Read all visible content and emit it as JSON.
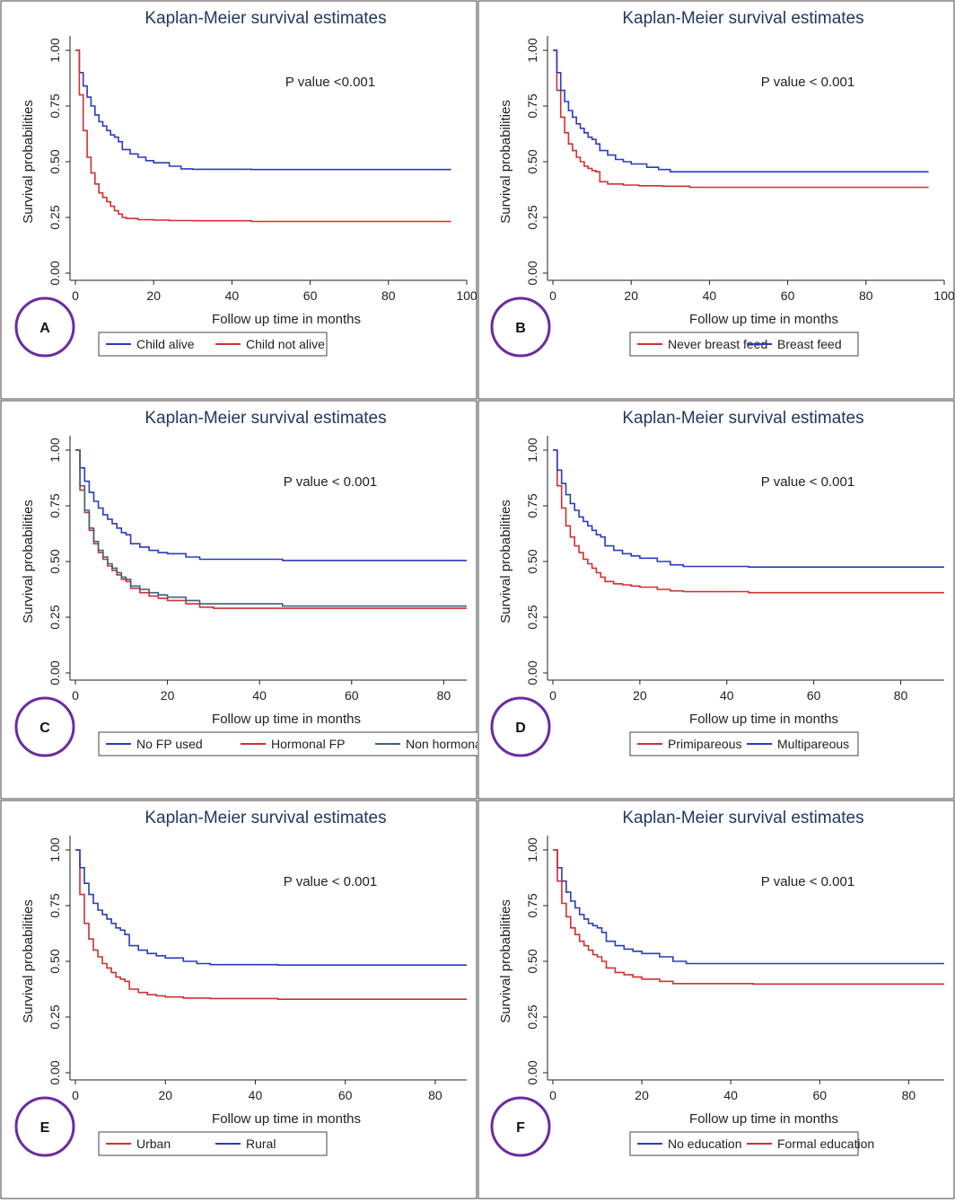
{
  "chart_data": [
    {
      "type": "line",
      "panel_label": "A",
      "title": "Kaplan-Meier survival estimates",
      "xlabel": "Follow up time in months",
      "ylabel": "Survival probabilities",
      "annotation": "P value <0.001",
      "xlim": [
        0,
        100
      ],
      "ylim": [
        0,
        1
      ],
      "xticks": [
        "0",
        "20",
        "40",
        "60",
        "80",
        "100"
      ],
      "yticks": [
        "0.00",
        "0.25",
        "0.50",
        "0.75",
        "1.00"
      ],
      "legend": [
        "Child alive",
        "Child not alive"
      ],
      "series": [
        {
          "name": "Child alive",
          "color": "#2a3bbf",
          "x": [
            0,
            1,
            2,
            3,
            4,
            5,
            6,
            7,
            8,
            9,
            10,
            11,
            12,
            14,
            16,
            18,
            20,
            24,
            27,
            30,
            45,
            96
          ],
          "y": [
            1.0,
            0.9,
            0.84,
            0.79,
            0.75,
            0.71,
            0.68,
            0.66,
            0.64,
            0.62,
            0.61,
            0.59,
            0.555,
            0.535,
            0.52,
            0.505,
            0.495,
            0.48,
            0.468,
            0.466,
            0.465,
            0.465
          ]
        },
        {
          "name": "Child not alive",
          "color": "#d03030",
          "x": [
            0,
            1,
            2,
            3,
            4,
            5,
            6,
            7,
            8,
            9,
            10,
            11,
            12,
            13,
            16,
            20,
            24,
            30,
            45,
            96
          ],
          "y": [
            1.0,
            0.8,
            0.64,
            0.52,
            0.45,
            0.4,
            0.36,
            0.34,
            0.32,
            0.3,
            0.28,
            0.265,
            0.25,
            0.245,
            0.24,
            0.238,
            0.236,
            0.235,
            0.232,
            0.232
          ]
        }
      ]
    },
    {
      "type": "line",
      "panel_label": "B",
      "title": "Kaplan-Meier survival estimates",
      "xlabel": "Follow up time in months",
      "ylabel": "Survival probabilities",
      "annotation": "P value < 0.001",
      "xlim": [
        0,
        100
      ],
      "ylim": [
        0,
        1
      ],
      "xticks": [
        "0",
        "20",
        "40",
        "60",
        "80",
        "100"
      ],
      "yticks": [
        "0.00",
        "0.25",
        "0.50",
        "0.75",
        "1.00"
      ],
      "legend": [
        "Never breast feed",
        "Breast feed"
      ],
      "series": [
        {
          "name": "Never breast feed",
          "color": "#d03030",
          "x": [
            0,
            1,
            2,
            3,
            4,
            5,
            6,
            7,
            8,
            9,
            10,
            11,
            12,
            14,
            18,
            22,
            28,
            35,
            45,
            96
          ],
          "y": [
            1.0,
            0.82,
            0.7,
            0.63,
            0.58,
            0.55,
            0.52,
            0.5,
            0.48,
            0.47,
            0.46,
            0.455,
            0.41,
            0.4,
            0.395,
            0.392,
            0.39,
            0.385,
            0.385,
            0.385
          ]
        },
        {
          "name": "Breast feed",
          "color": "#2a3bbf",
          "x": [
            0,
            1,
            2,
            3,
            4,
            5,
            6,
            7,
            8,
            9,
            10,
            11,
            12,
            14,
            16,
            18,
            20,
            24,
            27,
            30,
            40,
            96
          ],
          "y": [
            1.0,
            0.9,
            0.82,
            0.77,
            0.73,
            0.7,
            0.67,
            0.65,
            0.63,
            0.61,
            0.6,
            0.58,
            0.55,
            0.53,
            0.51,
            0.5,
            0.49,
            0.475,
            0.465,
            0.455,
            0.455,
            0.455
          ]
        }
      ]
    },
    {
      "type": "line",
      "panel_label": "C",
      "title": "Kaplan-Meier survival estimates",
      "xlabel": "Follow up  time in months",
      "ylabel": "Survival probabilities",
      "annotation": "P value < 0.001",
      "xlim": [
        0,
        85
      ],
      "ylim": [
        0,
        1
      ],
      "xticks": [
        "0",
        "20",
        "40",
        "60",
        "80"
      ],
      "yticks": [
        "0.00",
        "0.25",
        "0.50",
        "0.75",
        "1.00"
      ],
      "legend": [
        "No FP used",
        "Hormonal FP",
        "Non hormonal"
      ],
      "series": [
        {
          "name": "No FP used",
          "color": "#2a3bbf",
          "x": [
            0,
            1,
            2,
            3,
            4,
            5,
            6,
            7,
            8,
            9,
            10,
            11,
            12,
            14,
            16,
            18,
            20,
            24,
            27,
            30,
            45,
            96
          ],
          "y": [
            1.0,
            0.92,
            0.86,
            0.81,
            0.77,
            0.74,
            0.71,
            0.69,
            0.67,
            0.65,
            0.63,
            0.62,
            0.58,
            0.565,
            0.55,
            0.54,
            0.535,
            0.52,
            0.51,
            0.51,
            0.505,
            0.505
          ]
        },
        {
          "name": "Hormonal FP",
          "color": "#d03030",
          "x": [
            0,
            1,
            2,
            3,
            4,
            5,
            6,
            7,
            8,
            9,
            10,
            11,
            12,
            14,
            16,
            18,
            20,
            24,
            27,
            30,
            45,
            96
          ],
          "y": [
            1.0,
            0.82,
            0.72,
            0.64,
            0.58,
            0.54,
            0.51,
            0.48,
            0.46,
            0.44,
            0.42,
            0.41,
            0.38,
            0.36,
            0.345,
            0.335,
            0.325,
            0.31,
            0.295,
            0.29,
            0.29,
            0.29
          ]
        },
        {
          "name": "Non hormonal",
          "color": "#3f5f7f",
          "x": [
            0,
            1,
            2,
            3,
            4,
            5,
            6,
            7,
            8,
            9,
            10,
            11,
            12,
            14,
            16,
            18,
            20,
            24,
            27,
            30,
            44,
            45,
            96
          ],
          "y": [
            1.0,
            0.84,
            0.73,
            0.65,
            0.59,
            0.55,
            0.52,
            0.49,
            0.47,
            0.45,
            0.43,
            0.42,
            0.39,
            0.375,
            0.36,
            0.35,
            0.34,
            0.325,
            0.31,
            0.31,
            0.31,
            0.3,
            0.3
          ]
        }
      ]
    },
    {
      "type": "line",
      "panel_label": "D",
      "title": "Kaplan-Meier survival estimates",
      "xlabel": "Follow up time in months",
      "ylabel": "Survival probabilities",
      "annotation": "P value < 0.001",
      "xlim": [
        0,
        90
      ],
      "ylim": [
        0,
        1
      ],
      "xticks": [
        "0",
        "20",
        "40",
        "60",
        "80"
      ],
      "yticks": [
        "0.00",
        "0.25",
        "0.50",
        "0.75",
        "1.00"
      ],
      "legend": [
        "Primipareous",
        "Multipareous"
      ],
      "series": [
        {
          "name": "Primipareous",
          "color": "#d03030",
          "x": [
            0,
            1,
            2,
            3,
            4,
            5,
            6,
            7,
            8,
            9,
            10,
            11,
            12,
            14,
            16,
            18,
            20,
            24,
            27,
            30,
            45,
            96
          ],
          "y": [
            1.0,
            0.84,
            0.74,
            0.66,
            0.61,
            0.57,
            0.54,
            0.51,
            0.49,
            0.47,
            0.45,
            0.43,
            0.41,
            0.4,
            0.395,
            0.39,
            0.385,
            0.375,
            0.368,
            0.365,
            0.36,
            0.36
          ]
        },
        {
          "name": "Multipareous",
          "color": "#2a3bbf",
          "x": [
            0,
            1,
            2,
            3,
            4,
            5,
            6,
            7,
            8,
            9,
            10,
            11,
            12,
            14,
            16,
            18,
            20,
            24,
            27,
            30,
            45,
            96
          ],
          "y": [
            1.0,
            0.91,
            0.85,
            0.8,
            0.76,
            0.73,
            0.7,
            0.68,
            0.66,
            0.64,
            0.62,
            0.61,
            0.57,
            0.55,
            0.535,
            0.525,
            0.515,
            0.5,
            0.485,
            0.478,
            0.475,
            0.475
          ]
        }
      ]
    },
    {
      "type": "line",
      "panel_label": "E",
      "title": "Kaplan-Meier survival estimates",
      "xlabel": "Follow up  time in months",
      "ylabel": "Survival probabilities",
      "annotation": "P value < 0.001",
      "xlim": [
        0,
        87
      ],
      "ylim": [
        0,
        1
      ],
      "xticks": [
        "0",
        "20",
        "40",
        "60",
        "80"
      ],
      "yticks": [
        "0.00",
        "0.25",
        "0.50",
        "0.75",
        "1.00"
      ],
      "legend": [
        "Urban",
        "Rural"
      ],
      "series": [
        {
          "name": "Urban",
          "color": "#d03030",
          "x": [
            0,
            1,
            2,
            3,
            4,
            5,
            6,
            7,
            8,
            9,
            10,
            11,
            12,
            14,
            16,
            18,
            20,
            24,
            27,
            30,
            45,
            96
          ],
          "y": [
            1.0,
            0.8,
            0.67,
            0.6,
            0.55,
            0.52,
            0.49,
            0.47,
            0.45,
            0.43,
            0.42,
            0.41,
            0.375,
            0.36,
            0.35,
            0.345,
            0.34,
            0.335,
            0.335,
            0.333,
            0.33,
            0.33
          ]
        },
        {
          "name": "Rural",
          "color": "#2a3bbf",
          "x": [
            0,
            1,
            2,
            3,
            4,
            5,
            6,
            7,
            8,
            9,
            10,
            11,
            12,
            14,
            16,
            18,
            20,
            24,
            27,
            30,
            45,
            96
          ],
          "y": [
            1.0,
            0.92,
            0.85,
            0.8,
            0.76,
            0.73,
            0.71,
            0.69,
            0.67,
            0.65,
            0.64,
            0.62,
            0.57,
            0.55,
            0.535,
            0.525,
            0.515,
            0.5,
            0.49,
            0.485,
            0.483,
            0.483
          ]
        }
      ]
    },
    {
      "type": "line",
      "panel_label": "F",
      "title": "Kaplan-Meier survival estimates",
      "xlabel": "Follow up time in months",
      "ylabel": "Survival probabilities",
      "annotation": "P value < 0.001",
      "xlim": [
        0,
        88
      ],
      "ylim": [
        0,
        1
      ],
      "xticks": [
        "0",
        "20",
        "40",
        "60",
        "80"
      ],
      "yticks": [
        "0.00",
        "0.25",
        "0.50",
        "0.75",
        "1.00"
      ],
      "legend": [
        "No education",
        "Formal education"
      ],
      "series": [
        {
          "name": "No education",
          "color": "#2a3bbf",
          "x": [
            0,
            1,
            2,
            3,
            4,
            5,
            6,
            7,
            8,
            9,
            10,
            11,
            12,
            14,
            16,
            18,
            20,
            24,
            27,
            30,
            45,
            96
          ],
          "y": [
            1.0,
            0.92,
            0.86,
            0.81,
            0.77,
            0.74,
            0.71,
            0.69,
            0.67,
            0.66,
            0.65,
            0.63,
            0.59,
            0.57,
            0.555,
            0.545,
            0.535,
            0.52,
            0.5,
            0.49,
            0.49,
            0.49
          ]
        },
        {
          "name": "Formal education",
          "color": "#d03030",
          "x": [
            0,
            1,
            2,
            3,
            4,
            5,
            6,
            7,
            8,
            9,
            10,
            11,
            12,
            14,
            16,
            18,
            20,
            24,
            27,
            30,
            45,
            96
          ],
          "y": [
            1.0,
            0.86,
            0.76,
            0.7,
            0.65,
            0.62,
            0.59,
            0.57,
            0.55,
            0.53,
            0.52,
            0.5,
            0.47,
            0.45,
            0.44,
            0.43,
            0.42,
            0.41,
            0.4,
            0.4,
            0.398,
            0.398
          ]
        }
      ]
    }
  ]
}
